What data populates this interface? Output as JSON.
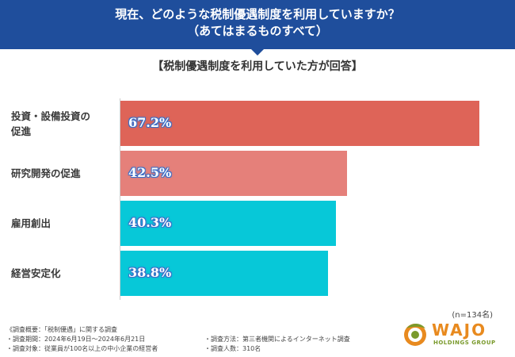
{
  "header": {
    "line1": "現在、どのような税制優遇制度を利用していますか？",
    "line2": "（あてはまるものすべて）"
  },
  "subtitle": "【税制優遇制度を利用していた方が回答】",
  "chart_data": {
    "type": "bar",
    "orientation": "horizontal",
    "title": "現在、どのような税制優遇制度を利用していますか？（あてはまるものすべて）",
    "categories": [
      "投資・設備投資の促進",
      "研究開発の促進",
      "雇用創出",
      "経営安定化"
    ],
    "values": [
      67.2,
      42.5,
      40.3,
      38.8
    ],
    "value_labels": [
      "67.2%",
      "42.5%",
      "40.3%",
      "38.8%"
    ],
    "unit": "%",
    "xlim": [
      0,
      70
    ],
    "colors": [
      "#de6458",
      "#e5807a",
      "#07c8d8",
      "#07c8d8"
    ],
    "sample": "(n=134名)"
  },
  "category_display": [
    [
      "投資・設備投資の",
      "促進"
    ],
    [
      "研究開発の促進"
    ],
    [
      "雇用創出"
    ],
    [
      "経営安定化"
    ]
  ],
  "footer": {
    "summary": "《調査概要：「税制優遇」に関する調査",
    "period": "・調査期間：2024年6月19日〜2024年6月21日",
    "target": "・調査対象：従業員が100名以上の中小企業の経営者",
    "method": "・調査方法：第三者機関によるインターネット調査",
    "count": "・調査人数：310名"
  },
  "logo": {
    "name": "WAJO",
    "sub": "HOLDINGS GROUP",
    "colors": {
      "orange": "#e88a1f",
      "green": "#7a9a2c"
    }
  }
}
